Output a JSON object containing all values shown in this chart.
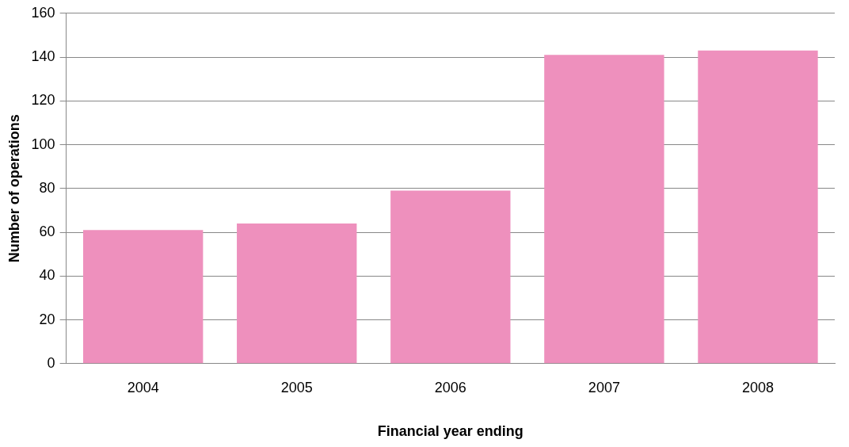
{
  "chart_data": {
    "type": "bar",
    "xlabel": "Financial year ending",
    "ylabel": "Number of operations",
    "categories": [
      "2004",
      "2005",
      "2006",
      "2007",
      "2008"
    ],
    "values": [
      61,
      64,
      79,
      141,
      143
    ],
    "color": "#ee90bd",
    "ylim": [
      0,
      160
    ],
    "yticks": [
      0,
      20,
      40,
      60,
      80,
      100,
      120,
      140,
      160
    ],
    "grid": "y",
    "legend": false
  }
}
